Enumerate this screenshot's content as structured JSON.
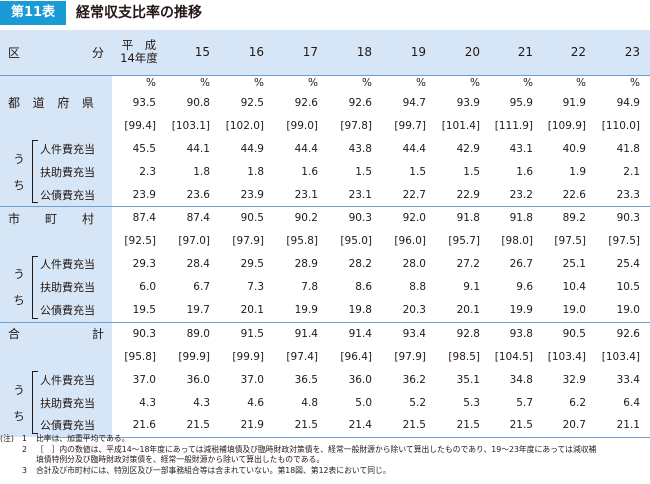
{
  "title": {
    "tag": "第11表",
    "text": "経常収支比率の推移"
  },
  "header": {
    "kubun_left": "区",
    "kubun_right": "分",
    "heisei_line1": "平　成",
    "heisei_line2": "14年度",
    "years": [
      "15",
      "16",
      "17",
      "18",
      "19",
      "20",
      "21",
      "22",
      "23"
    ]
  },
  "unit_row": [
    "%",
    "%",
    "%",
    "%",
    "%",
    "%",
    "%",
    "%",
    "%",
    "%"
  ],
  "uchi": [
    "う",
    "ち"
  ],
  "groups": [
    {
      "name": [
        "都",
        "道",
        "府",
        "県"
      ],
      "values": [
        "93.5",
        "90.8",
        "92.5",
        "92.6",
        "92.6",
        "94.7",
        "93.9",
        "95.9",
        "91.9",
        "94.9"
      ],
      "bracket": [
        "[99.4]",
        "[103.1]",
        "[102.0]",
        "[99.0]",
        "[97.8]",
        "[99.7]",
        "[101.4]",
        "[111.9]",
        "[109.9]",
        "[110.0]"
      ],
      "subs": [
        {
          "label": "人件費充当",
          "values": [
            "45.5",
            "44.1",
            "44.9",
            "44.4",
            "43.8",
            "44.4",
            "42.9",
            "43.1",
            "40.9",
            "41.8"
          ]
        },
        {
          "label": "扶助費充当",
          "values": [
            "2.3",
            "1.8",
            "1.8",
            "1.6",
            "1.5",
            "1.5",
            "1.5",
            "1.6",
            "1.9",
            "2.1"
          ]
        },
        {
          "label": "公債費充当",
          "values": [
            "23.9",
            "23.6",
            "23.9",
            "23.1",
            "23.1",
            "22.7",
            "22.9",
            "23.2",
            "22.6",
            "23.3"
          ]
        }
      ]
    },
    {
      "name": [
        "市",
        "町",
        "村"
      ],
      "values": [
        "87.4",
        "87.4",
        "90.5",
        "90.2",
        "90.3",
        "92.0",
        "91.8",
        "91.8",
        "89.2",
        "90.3"
      ],
      "bracket": [
        "[92.5]",
        "[97.0]",
        "[97.9]",
        "[95.8]",
        "[95.0]",
        "[96.0]",
        "[95.7]",
        "[98.0]",
        "[97.5]",
        "[97.5]"
      ],
      "subs": [
        {
          "label": "人件費充当",
          "values": [
            "29.3",
            "28.4",
            "29.5",
            "28.9",
            "28.2",
            "28.0",
            "27.2",
            "26.7",
            "25.1",
            "25.4"
          ]
        },
        {
          "label": "扶助費充当",
          "values": [
            "6.0",
            "6.7",
            "7.3",
            "7.8",
            "8.6",
            "8.8",
            "9.1",
            "9.6",
            "10.4",
            "10.5"
          ]
        },
        {
          "label": "公債費充当",
          "values": [
            "19.5",
            "19.7",
            "20.1",
            "19.9",
            "19.8",
            "20.3",
            "20.1",
            "19.9",
            "19.0",
            "19.0"
          ]
        }
      ]
    },
    {
      "name": [
        "合",
        "計"
      ],
      "values": [
        "90.3",
        "89.0",
        "91.5",
        "91.4",
        "91.4",
        "93.4",
        "92.8",
        "93.8",
        "90.5",
        "92.6"
      ],
      "bracket": [
        "[95.8]",
        "[99.9]",
        "[99.9]",
        "[97.4]",
        "[96.4]",
        "[97.9]",
        "[98.5]",
        "[104.5]",
        "[103.4]",
        "[103.4]"
      ],
      "subs": [
        {
          "label": "人件費充当",
          "values": [
            "37.0",
            "36.0",
            "37.0",
            "36.5",
            "36.0",
            "36.2",
            "35.1",
            "34.8",
            "32.9",
            "33.4"
          ]
        },
        {
          "label": "扶助費充当",
          "values": [
            "4.3",
            "4.3",
            "4.6",
            "4.8",
            "5.0",
            "5.2",
            "5.3",
            "5.7",
            "6.2",
            "6.4"
          ]
        },
        {
          "label": "公債費充当",
          "values": [
            "21.6",
            "21.5",
            "21.9",
            "21.5",
            "21.4",
            "21.5",
            "21.5",
            "21.5",
            "20.7",
            "21.1"
          ]
        }
      ]
    }
  ],
  "notes": {
    "prefix": "(注)",
    "items": [
      {
        "num": "1",
        "text": "比率は、加重平均である。"
      },
      {
        "num": "2",
        "text": "［　］内の数値は、平成14～18年度にあっては減税補填債及び臨時財政対策債を、経常一般財源から除いて算出したものであり、19～23年度にあっては減収補"
      },
      {
        "num": "",
        "text": "填債特例分及び臨時財政対策債を、経常一般財源から除いて算出したものである。"
      },
      {
        "num": "3",
        "text": "合計及び市町村には、特別区及び一部事務組合等は含まれていない。第18図、第12表において同じ。"
      }
    ]
  }
}
